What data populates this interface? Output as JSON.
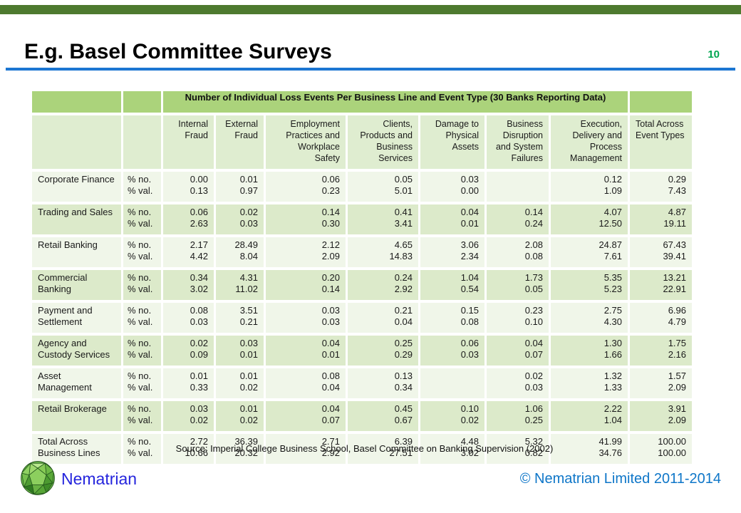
{
  "slide": {
    "title": "E.g. Basel Committee Surveys",
    "page_number": "10",
    "colors": {
      "top_bar": "#4E7A2F",
      "title_rule": "#1C76D2",
      "page_number": "#00A651",
      "banner_green": "#ABD37B",
      "header_row_green": "#DFEDD0",
      "band_light": "#F0F6E9",
      "band_green": "#DCEACA",
      "brand_blue": "#2525DD",
      "copyright_blue": "#0E76C8"
    }
  },
  "table": {
    "banner_title": "Number of Individual Loss Events Per Business Line and Event Type (30 Banks Reporting Data)",
    "metric_labels": [
      "% no.",
      "% val."
    ],
    "columns": [
      [
        "Internal",
        "Fraud"
      ],
      [
        "External",
        "Fraud"
      ],
      [
        "Employment",
        "Practices and",
        "Workplace",
        "Safety"
      ],
      [
        "Clients,",
        "Products and",
        "Business",
        "Services"
      ],
      [
        "Damage to",
        "Physical",
        "Assets"
      ],
      [
        "Business",
        "Disruption",
        "and System",
        "Failures"
      ],
      [
        "Execution,",
        "Delivery and",
        "Process",
        "Management"
      ],
      [
        "Total Across",
        "Event Types"
      ]
    ],
    "rows": [
      {
        "label": [
          "Corporate Finance"
        ],
        "no": [
          "0.00",
          "0.01",
          "0.06",
          "0.05",
          "0.03",
          "",
          "0.12",
          "0.29"
        ],
        "val": [
          "0.13",
          "0.97",
          "0.23",
          "5.01",
          "0.00",
          "",
          "1.09",
          "7.43"
        ]
      },
      {
        "label": [
          "Trading and Sales"
        ],
        "no": [
          "0.06",
          "0.02",
          "0.14",
          "0.41",
          "0.04",
          "0.14",
          "4.07",
          "4.87"
        ],
        "val": [
          "2.63",
          "0.03",
          "0.30",
          "3.41",
          "0.01",
          "0.24",
          "12.50",
          "19.11"
        ]
      },
      {
        "label": [
          "Retail Banking"
        ],
        "no": [
          "2.17",
          "28.49",
          "2.12",
          "4.65",
          "3.06",
          "2.08",
          "24.87",
          "67.43"
        ],
        "val": [
          "4.42",
          "8.04",
          "2.09",
          "14.83",
          "2.34",
          "0.08",
          "7.61",
          "39.41"
        ]
      },
      {
        "label": [
          "Commercial",
          "Banking"
        ],
        "no": [
          "0.34",
          "4.31",
          "0.20",
          "0.24",
          "1.04",
          "1.73",
          "5.35",
          "13.21"
        ],
        "val": [
          "3.02",
          "11.02",
          "0.14",
          "2.92",
          "0.54",
          "0.05",
          "5.23",
          "22.91"
        ]
      },
      {
        "label": [
          "Payment and",
          "Settlement"
        ],
        "no": [
          "0.08",
          "3.51",
          "0.03",
          "0.21",
          "0.15",
          "0.23",
          "2.75",
          "6.96"
        ],
        "val": [
          "0.03",
          "0.21",
          "0.03",
          "0.04",
          "0.08",
          "0.10",
          "4.30",
          "4.79"
        ]
      },
      {
        "label": [
          "Agency and",
          "Custody Services"
        ],
        "no": [
          "0.02",
          "0.03",
          "0.04",
          "0.25",
          "0.06",
          "0.04",
          "1.30",
          "1.75"
        ],
        "val": [
          "0.09",
          "0.01",
          "0.01",
          "0.29",
          "0.03",
          "0.07",
          "1.66",
          "2.16"
        ]
      },
      {
        "label": [
          "Asset",
          "Management"
        ],
        "no": [
          "0.01",
          "0.01",
          "0.08",
          "0.13",
          "",
          "0.02",
          "1.32",
          "1.57"
        ],
        "val": [
          "0.33",
          "0.02",
          "0.04",
          "0.34",
          "",
          "0.03",
          "1.33",
          "2.09"
        ]
      },
      {
        "label": [
          "Retail Brokerage"
        ],
        "no": [
          "0.03",
          "0.01",
          "0.04",
          "0.45",
          "0.10",
          "1.06",
          "2.22",
          "3.91"
        ],
        "val": [
          "0.02",
          "0.02",
          "0.07",
          "0.67",
          "0.02",
          "0.25",
          "1.04",
          "2.09"
        ]
      },
      {
        "label": [
          "Total Across",
          "Business Lines"
        ],
        "no": [
          "2.72",
          "36.39",
          "2.71",
          "6.39",
          "4.48",
          "5.32",
          "41.99",
          "100.00"
        ],
        "val": [
          "10.66",
          "20.32",
          "2.92",
          "27.51",
          "3.02",
          "0.82",
          "34.76",
          "100.00"
        ]
      }
    ]
  },
  "source_note": "Source: Imperial College Business School, Basel Committee on Banking Supervision (2002)",
  "footer": {
    "brand": "Nematrian",
    "copyright": "© Nematrian Limited 2011-2014"
  }
}
